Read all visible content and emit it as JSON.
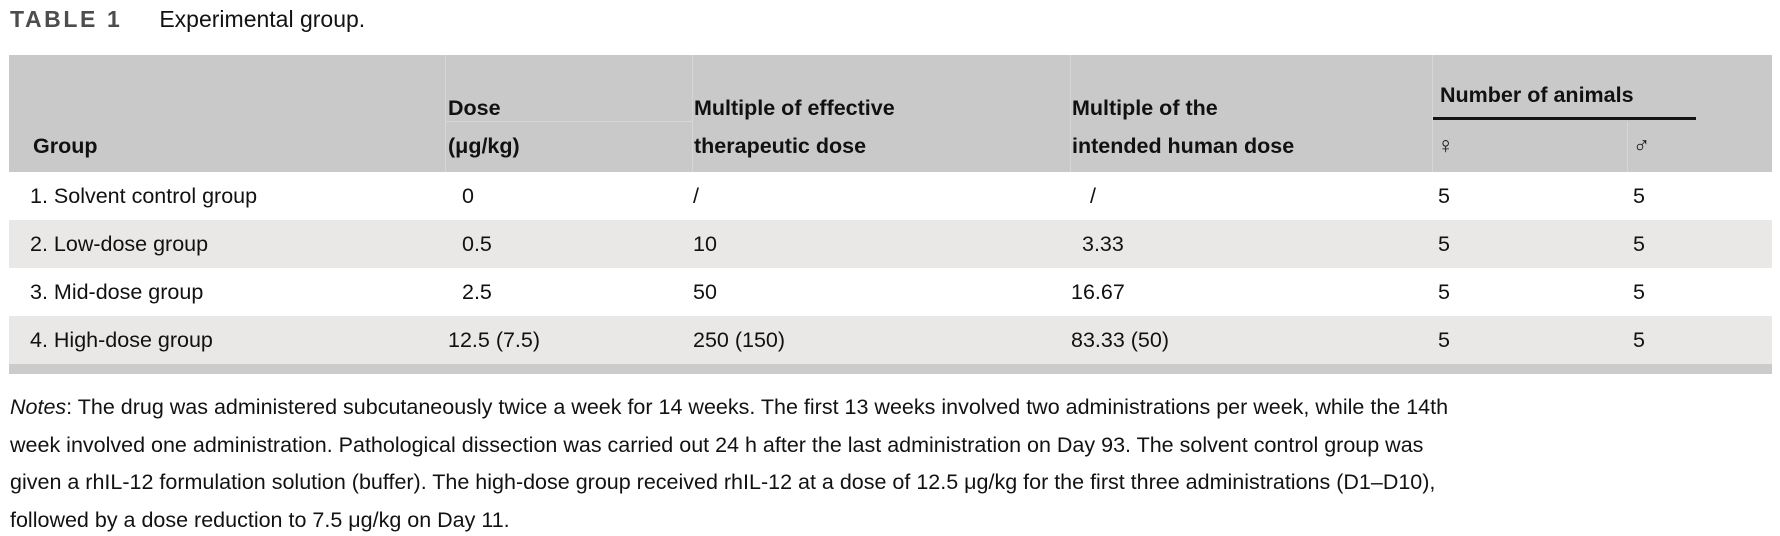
{
  "title": {
    "label": "TABLE 1",
    "caption": "Experimental group."
  },
  "table": {
    "headers": {
      "group": "Group",
      "dose": [
        "Dose",
        "(μg/kg)"
      ],
      "effective": [
        "Multiple of effective",
        "therapeutic dose"
      ],
      "human": [
        "Multiple of the",
        "intended human dose"
      ],
      "animals": "Number of animals",
      "female_symbol": "♀",
      "male_symbol": "♂"
    },
    "rows": [
      {
        "cells": [
          "1. Solvent control group",
          "0",
          "/",
          "/",
          "5",
          "5"
        ]
      },
      {
        "cells": [
          "2. Low-dose group",
          "0.5",
          "10",
          "3.33",
          "5",
          "5"
        ]
      },
      {
        "cells": [
          "3. Mid-dose group",
          "2.5",
          "50",
          "16.67",
          "5",
          "5"
        ]
      },
      {
        "cells": [
          "4. High-dose group",
          "12.5 (7.5)",
          "250 (150)",
          "83.33 (50)",
          "5",
          "5"
        ]
      }
    ]
  },
  "notes": {
    "label": "Notes",
    "line1_rest": ": The drug was administered subcutaneously twice a week for 14 weeks. The first 13 weeks involved two administrations per week, while the 14th",
    "line2": "week involved one administration. Pathological dissection was carried out 24 h after the last administration on Day 93. The solvent control group was",
    "line3": "given a rhIL-12 formulation solution (buffer). The high-dose group received rhIL-12 at a dose of 12.5 μg/kg for the first three administrations (D1–D10),",
    "line4": "followed by a dose reduction to 7.5 μg/kg on Day 11."
  },
  "colors": {
    "header_bg": "#c9c9c9",
    "stripe_bg": "#e9e8e6",
    "bottom_bar": "#cbcbca",
    "animals_rule": "#141414",
    "title_label": "#4d4d4d"
  }
}
